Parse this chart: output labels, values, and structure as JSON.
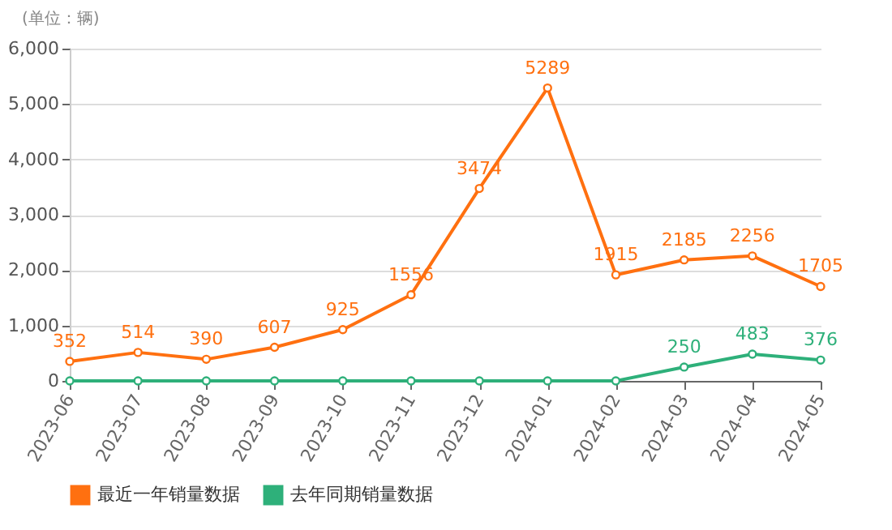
{
  "chart_data": {
    "type": "line",
    "ylabel": "(单位：辆)",
    "categories": [
      "2023-06",
      "2023-07",
      "2023-08",
      "2023-09",
      "2023-10",
      "2023-11",
      "2023-12",
      "2024-01",
      "2024-02",
      "2024-03",
      "2024-04",
      "2024-05"
    ],
    "series": [
      {
        "name": "最近一年销量数据",
        "color": "#ff7010",
        "values": [
          352,
          514,
          390,
          607,
          925,
          1556,
          3474,
          5289,
          1915,
          2185,
          2256,
          1705
        ],
        "value_labels": [
          "352",
          "514",
          "390",
          "607",
          "925",
          "1556",
          "3474",
          "5289",
          "1915",
          "2185",
          "2256",
          "1705"
        ]
      },
      {
        "name": "去年同期销量数据",
        "color": "#2eb07a",
        "values": [
          0,
          0,
          0,
          0,
          0,
          0,
          0,
          0,
          0,
          250,
          483,
          376
        ],
        "value_labels": [
          null,
          null,
          null,
          null,
          null,
          null,
          null,
          null,
          null,
          "250",
          "483",
          "376"
        ]
      }
    ],
    "ylim": [
      0,
      6000
    ],
    "yticks": [
      0,
      {
        "value": 1000,
        "label": "1,000"
      },
      {
        "value": 2000,
        "label": "2,000"
      },
      {
        "value": 3000,
        "label": "3,000"
      },
      {
        "value": 4000,
        "label": "4,000"
      },
      {
        "value": 5000,
        "label": "5,000"
      },
      {
        "value": 6000,
        "label": "6,000"
      }
    ],
    "grid": "y",
    "legend": "bottom",
    "marker": "circle",
    "line_style": "solid"
  }
}
